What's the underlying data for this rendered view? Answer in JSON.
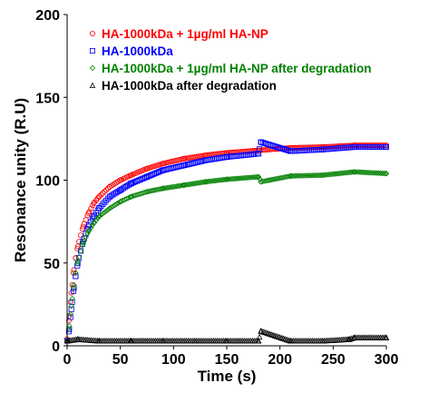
{
  "chart_data": {
    "type": "scatter",
    "title": "",
    "xlabel": "Time (s)",
    "ylabel": "Resonance unity (R.U)",
    "xlim": [
      0,
      300
    ],
    "ylim": [
      0,
      200
    ],
    "x_ticks": [
      "0",
      "50",
      "100",
      "150",
      "200",
      "250",
      "300"
    ],
    "y_ticks": [
      "0",
      "50",
      "100",
      "150",
      "200"
    ],
    "grid": false,
    "legend_position": "top-right",
    "series": [
      {
        "name": "HA-1000kDa + 1µg/ml HA-NP",
        "color": "#ff0000",
        "marker": "circle",
        "x": [
          0,
          2,
          4,
          6,
          8,
          10,
          15,
          20,
          25,
          30,
          40,
          50,
          60,
          75,
          90,
          110,
          130,
          150,
          180,
          210,
          240,
          270,
          300
        ],
        "y": [
          4,
          18,
          32,
          44,
          53,
          60,
          72,
          80,
          86,
          90,
          96,
          100,
          103,
          107,
          110,
          113,
          115,
          116.5,
          118,
          119.5,
          120,
          121,
          121
        ]
      },
      {
        "name": "HA-1000kDa",
        "color": "#0000ff",
        "marker": "square",
        "x": [
          0,
          2,
          4,
          6,
          8,
          10,
          15,
          20,
          25,
          30,
          40,
          50,
          60,
          75,
          90,
          110,
          130,
          150,
          180,
          182,
          210,
          240,
          270,
          300
        ],
        "y": [
          3,
          10,
          22,
          33,
          42,
          50,
          63,
          72,
          78,
          83,
          90,
          94,
          98,
          102,
          106,
          109,
          112,
          114,
          116,
          123,
          117.5,
          118.5,
          120,
          120
        ]
      },
      {
        "name": "HA-1000kDa + 1µg/ml HA-NP after degradation",
        "color": "#008000",
        "marker": "diamond",
        "x": [
          0,
          2,
          4,
          6,
          8,
          10,
          15,
          20,
          25,
          30,
          40,
          50,
          60,
          75,
          90,
          110,
          130,
          150,
          180,
          182,
          210,
          240,
          270,
          300
        ],
        "y": [
          3,
          12,
          24,
          35,
          44,
          51,
          62,
          69,
          74,
          78,
          83,
          87,
          90,
          93,
          95,
          97,
          99,
          100.5,
          102,
          99,
          102.5,
          103,
          105,
          104
        ]
      },
      {
        "name": "HA-1000kDa after degradation",
        "color": "#000000",
        "marker": "triangle",
        "x": [
          0,
          10,
          30,
          60,
          90,
          120,
          150,
          180,
          182,
          210,
          240,
          265,
          270,
          300
        ],
        "y": [
          3,
          4,
          3,
          3,
          3,
          3,
          3,
          3,
          9,
          3,
          3,
          4,
          5,
          5
        ]
      }
    ]
  }
}
